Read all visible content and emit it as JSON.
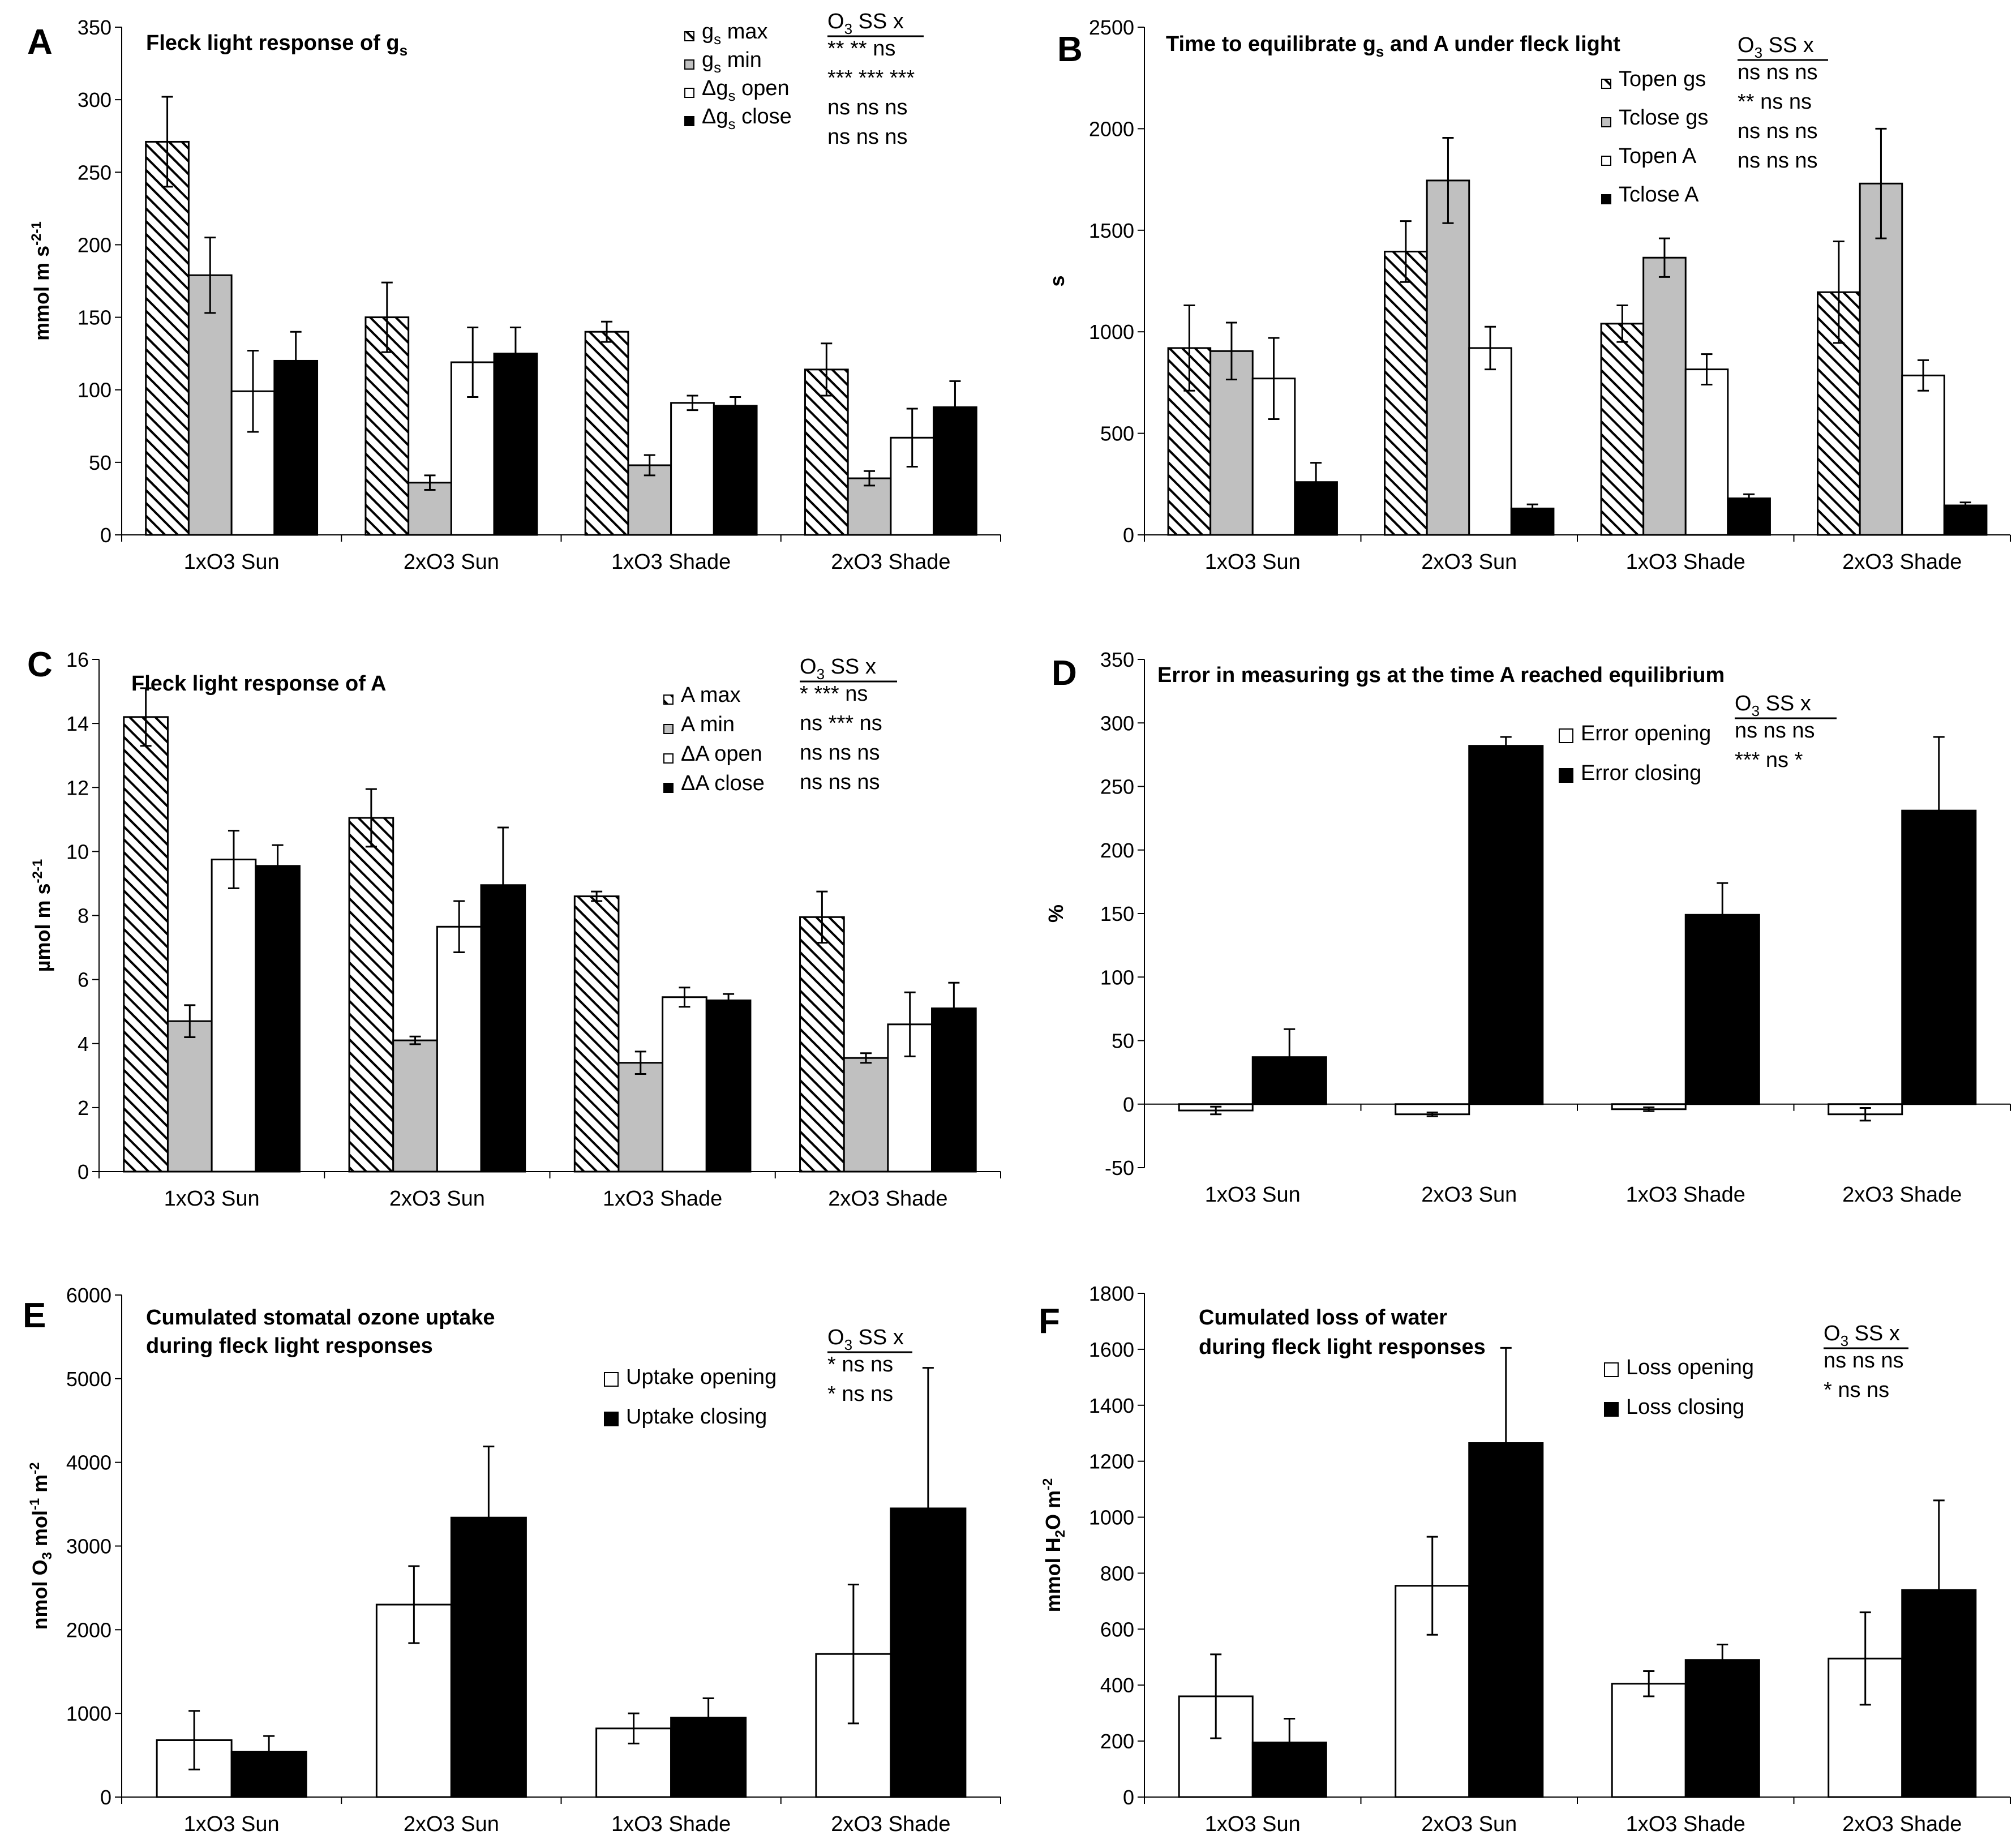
{
  "chart_data": [
    {
      "panel": "A",
      "type": "bar",
      "title": "Fleck light response of g",
      "title_sub": "s",
      "ylabel": "mmol m",
      "ylabel_sup1": "-2",
      "ylabel_mid": " s",
      "ylabel_sup2": "-1",
      "ylim": [
        0,
        350
      ],
      "yticks": [
        0,
        50,
        100,
        150,
        200,
        250,
        300,
        350
      ],
      "categories": [
        "1xO3 Sun",
        "2xO3 Sun",
        "1xO3 Shade",
        "2xO3 Shade"
      ],
      "series": [
        {
          "name": "g",
          "name_sub": "s",
          "name_after": " max",
          "fill": "hatch",
          "values": [
            271,
            150,
            140,
            114
          ],
          "errors": [
            31,
            24,
            7,
            18
          ]
        },
        {
          "name": "g",
          "name_sub": "s",
          "name_after": " min",
          "fill": "#c0c0c0",
          "values": [
            179,
            36,
            48,
            39
          ],
          "errors": [
            26,
            5,
            7,
            5
          ]
        },
        {
          "name": "Δg",
          "name_sub": "s",
          "name_after": " open",
          "fill": "#ffffff",
          "values": [
            99,
            119,
            91,
            67
          ],
          "errors": [
            28,
            24,
            5,
            20
          ]
        },
        {
          "name": "Δg",
          "name_sub": "s",
          "name_after": " close",
          "fill": "#000000",
          "values": [
            120,
            125,
            89,
            88
          ],
          "errors": [
            20,
            18,
            6,
            18
          ]
        }
      ],
      "stats": {
        "header": "O3 SS  x",
        "rows": [
          " **  **  ns",
          "*** *** ***",
          "ns ns ns",
          "ns ns ns"
        ]
      }
    },
    {
      "panel": "B",
      "type": "bar",
      "title": "Time to equilibrate g",
      "title_sub": "s",
      "title_after": " and A under fleck light",
      "ylabel": "s",
      "ylim": [
        0,
        2500
      ],
      "yticks": [
        0,
        500,
        1000,
        1500,
        2000,
        2500
      ],
      "categories": [
        "1xO3 Sun",
        "2xO3 Sun",
        "1xO3 Shade",
        "2xO3 Shade"
      ],
      "series": [
        {
          "name": "Topen gs",
          "fill": "hatch",
          "values": [
            920,
            1395,
            1040,
            1195
          ],
          "errors": [
            210,
            150,
            90,
            250
          ]
        },
        {
          "name": "Tclose gs",
          "fill": "#c0c0c0",
          "values": [
            905,
            1745,
            1365,
            1730
          ],
          "errors": [
            140,
            210,
            95,
            270
          ]
        },
        {
          "name": "Topen A",
          "fill": "#ffffff",
          "values": [
            770,
            920,
            815,
            785
          ],
          "errors": [
            200,
            105,
            75,
            75
          ]
        },
        {
          "name": "Tclose A",
          "fill": "#000000",
          "values": [
            260,
            130,
            180,
            145
          ],
          "errors": [
            95,
            20,
            20,
            15
          ]
        }
      ],
      "stats": {
        "header": "O3 SS  x",
        "rows": [
          "ns ns ns",
          "**  ns ns",
          "ns ns ns",
          "ns ns ns"
        ]
      }
    },
    {
      "panel": "C",
      "type": "bar",
      "title": "Fleck light response of A",
      "ylabel": "µmol m",
      "ylabel_sup1": "-2",
      "ylabel_mid": " s",
      "ylabel_sup2": "-1",
      "ylim": [
        0,
        16
      ],
      "yticks": [
        0,
        2,
        4,
        6,
        8,
        10,
        12,
        14,
        16
      ],
      "categories": [
        "1xO3 Sun",
        "2xO3 Sun",
        "1xO3 Shade",
        "2xO3 Shade"
      ],
      "series": [
        {
          "name": "A max",
          "fill": "hatch",
          "values": [
            14.2,
            11.05,
            8.6,
            7.95
          ],
          "errors": [
            0.9,
            0.9,
            0.15,
            0.8
          ]
        },
        {
          "name": "A min",
          "fill": "#c0c0c0",
          "values": [
            4.7,
            4.1,
            3.4,
            3.55
          ],
          "errors": [
            0.5,
            0.12,
            0.35,
            0.15
          ]
        },
        {
          "name": "ΔA open",
          "fill": "#ffffff",
          "values": [
            9.75,
            7.65,
            5.45,
            4.6
          ],
          "errors": [
            0.9,
            0.8,
            0.3,
            1.0
          ]
        },
        {
          "name": "ΔA close",
          "fill": "#000000",
          "values": [
            9.55,
            8.95,
            5.35,
            5.1
          ],
          "errors": [
            0.65,
            1.8,
            0.2,
            0.8
          ]
        }
      ],
      "stats": {
        "header": "O3 SS  x",
        "rows": [
          " *   *** ns",
          "ns *** ns",
          "ns ns ns",
          "ns ns ns"
        ]
      }
    },
    {
      "panel": "D",
      "type": "bar",
      "title": "Error in measuring gs at the time A reached equilibrium",
      "ylabel": "%",
      "ylim": [
        -50,
        350
      ],
      "yticks": [
        -50,
        0,
        50,
        100,
        150,
        200,
        250,
        300,
        350
      ],
      "categories": [
        "1xO3 Sun",
        "2xO3 Sun",
        "1xO3 Shade",
        "2xO3 Shade"
      ],
      "series": [
        {
          "name": "Error opening",
          "fill": "#ffffff",
          "values": [
            -5,
            -8,
            -4,
            -8
          ],
          "errors": [
            3,
            1.5,
            1.5,
            5
          ]
        },
        {
          "name": "Error closing",
          "fill": "#000000",
          "values": [
            37,
            282,
            149,
            231
          ],
          "errors": [
            22,
            7,
            25,
            58
          ]
        }
      ],
      "stats": {
        "header": "O3 SS  x",
        "rows": [
          "ns  ns  ns",
          "*** ns  *"
        ]
      }
    },
    {
      "panel": "E",
      "type": "bar",
      "title": "Cumulated stomatal ozone uptake",
      "title2": "during fleck light responses",
      "ylabel": "nmol O",
      "ylabel_sub": "3",
      "ylabel_mid": " mol",
      "ylabel_sup1": "-1",
      "ylabel_mid2": " m",
      "ylabel_sup2": "-2",
      "ylim": [
        0,
        6000
      ],
      "yticks": [
        0,
        1000,
        2000,
        3000,
        4000,
        5000,
        6000
      ],
      "categories": [
        "1xO3 Sun",
        "2xO3 Sun",
        "1xO3 Shade",
        "2xO3 Shade"
      ],
      "series": [
        {
          "name": "Uptake opening",
          "fill": "#ffffff",
          "values": [
            680,
            2300,
            820,
            1710
          ],
          "errors": [
            350,
            460,
            180,
            830
          ]
        },
        {
          "name": "Uptake closing",
          "fill": "#000000",
          "values": [
            540,
            3340,
            950,
            3450
          ],
          "errors": [
            190,
            850,
            230,
            1680
          ]
        }
      ],
      "stats": {
        "header": "O3 SS x",
        "rows": [
          "*    ns ns",
          "*    ns ns"
        ]
      }
    },
    {
      "panel": "F",
      "type": "bar",
      "title": "Cumulated loss of water",
      "title2": "during fleck light responses",
      "ylabel": "mmol H",
      "ylabel_sub": "2",
      "ylabel_mid": "O m",
      "ylabel_sup1": "-2",
      "ylim": [
        0,
        1800
      ],
      "yticks": [
        0,
        200,
        400,
        600,
        800,
        1000,
        1200,
        1400,
        1600,
        1800
      ],
      "categories": [
        "1xO3 Sun",
        "2xO3 Sun",
        "1xO3 Shade",
        "2xO3 Shade"
      ],
      "series": [
        {
          "name": "Loss opening",
          "fill": "#ffffff",
          "values": [
            360,
            755,
            405,
            495
          ],
          "errors": [
            150,
            175,
            45,
            165
          ]
        },
        {
          "name": "Loss closing",
          "fill": "#000000",
          "values": [
            195,
            1265,
            490,
            740
          ],
          "errors": [
            85,
            340,
            55,
            320
          ]
        }
      ],
      "stats": {
        "header": "O3 SS x",
        "rows": [
          "ns  ns ns",
          " *    ns ns"
        ]
      }
    }
  ]
}
